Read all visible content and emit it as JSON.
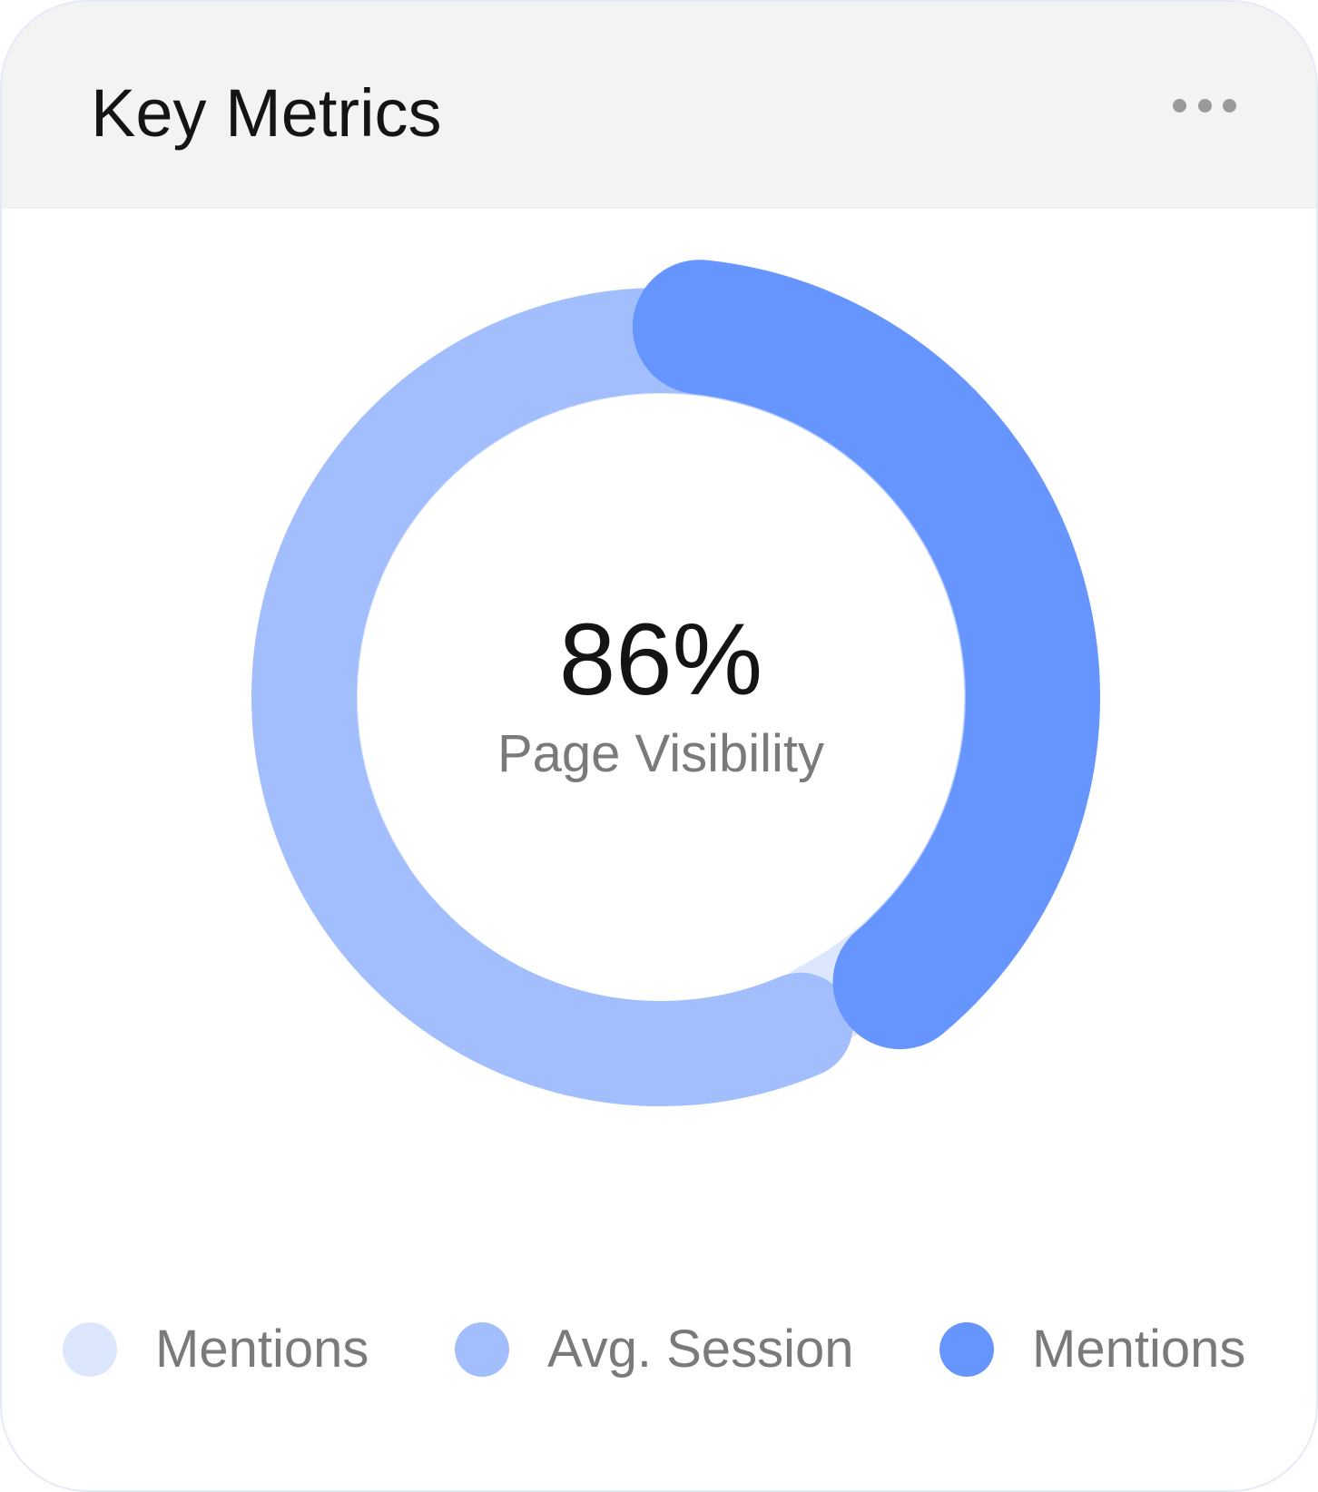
{
  "card": {
    "title": "Key Metrics",
    "menu_icon": "more-horizontal-icon"
  },
  "chart_data": {
    "type": "donut",
    "center_value": "86%",
    "center_label": "Page Visibility",
    "track_color": "#f1f1f1",
    "segments": [
      {
        "label": "Mentions",
        "color": "#dce6fd",
        "start_deg": 237,
        "end_deg": 153
      },
      {
        "label": "Avg. Session",
        "color": "#a3befd",
        "start_deg": 157,
        "end_deg": 136
      },
      {
        "label": "Mentions",
        "color": "#6795fe",
        "start_deg": 6,
        "end_deg": 140
      }
    ]
  },
  "legend": [
    {
      "label": "Mentions",
      "color": "#dce6fd"
    },
    {
      "label": "Avg. Session",
      "color": "#a3befd"
    },
    {
      "label": "Mentions",
      "color": "#6795fe"
    }
  ]
}
